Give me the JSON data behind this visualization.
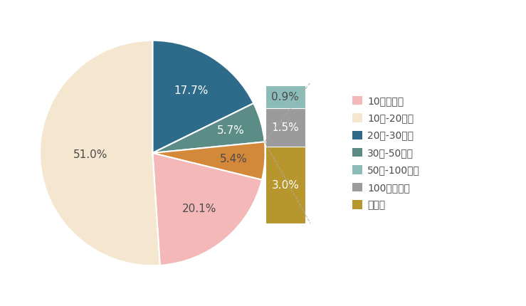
{
  "pie_values": [
    17.7,
    5.7,
    5.4,
    20.1,
    51.0
  ],
  "pie_colors": [
    "#2E6B8A",
    "#5B8C85",
    "#D4893A",
    "#F4B8B8",
    "#F5E6D0"
  ],
  "pie_pcts": [
    "17.7%",
    "5.7%",
    "5.4%",
    "20.1%",
    "51.0%"
  ],
  "pie_label_radii": [
    0.65,
    0.72,
    0.72,
    0.65,
    0.55
  ],
  "pie_label_colors": [
    "#FFFFFF",
    "#FFFFFF",
    "#4A4A4A",
    "#4A4A4A",
    "#4A4A4A"
  ],
  "bar_values": [
    0.9,
    1.5,
    3.0
  ],
  "bar_labels": [
    "0.9%",
    "1.5%",
    "3.0%"
  ],
  "bar_colors": [
    "#8BBCB8",
    "#9B9B9B",
    "#B8962E"
  ],
  "bar_label_colors": [
    "#4A4A4A",
    "#FFFFFF",
    "#FFFFFF"
  ],
  "legend_labels": [
    "10万元以下",
    "10万-20万元",
    "20万-30万元",
    "30万-50万元",
    "50万-100万元",
    "100万元以上",
    "没想好"
  ],
  "legend_colors": [
    "#F4B8B8",
    "#F5E6D0",
    "#2E6B8A",
    "#5B8C85",
    "#8BBCB8",
    "#9B9B9B",
    "#B8962E"
  ],
  "background_color": "#FFFFFF",
  "text_color": "#4A4A4A",
  "font_size": 11,
  "legend_fontsize": 10
}
